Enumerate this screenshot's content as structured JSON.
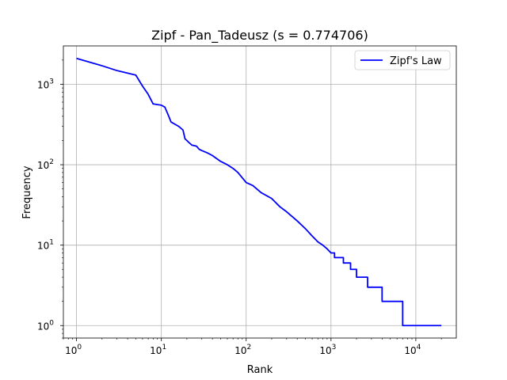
{
  "chart_data": {
    "type": "line",
    "title": "Zipf - Pan_Tadeusz (s = 0.774706)",
    "xlabel": "Rank",
    "ylabel": "Frequency",
    "xscale": "log",
    "yscale": "log",
    "xlim": [
      0.7,
      30000
    ],
    "ylim": [
      0.7,
      3000
    ],
    "grid": true,
    "legend_position": "upper right",
    "x_ticks": [
      {
        "value": 1,
        "base": "10",
        "exp": "0"
      },
      {
        "value": 10,
        "base": "10",
        "exp": "1"
      },
      {
        "value": 100,
        "base": "10",
        "exp": "2"
      },
      {
        "value": 1000,
        "base": "10",
        "exp": "3"
      },
      {
        "value": 10000,
        "base": "10",
        "exp": "4"
      }
    ],
    "y_ticks": [
      {
        "value": 1,
        "base": "10",
        "exp": "0"
      },
      {
        "value": 10,
        "base": "10",
        "exp": "1"
      },
      {
        "value": 100,
        "base": "10",
        "exp": "2"
      },
      {
        "value": 1000,
        "base": "10",
        "exp": "3"
      }
    ],
    "series": [
      {
        "name": "Zipf's Law",
        "color": "#0000ff",
        "points": [
          [
            1,
            2100
          ],
          [
            2,
            1700
          ],
          [
            3,
            1480
          ],
          [
            5,
            1300
          ],
          [
            6,
            950
          ],
          [
            7,
            750
          ],
          [
            8,
            570
          ],
          [
            10,
            550
          ],
          [
            11,
            520
          ],
          [
            12,
            420
          ],
          [
            13,
            340
          ],
          [
            16,
            300
          ],
          [
            18,
            270
          ],
          [
            19,
            210
          ],
          [
            20,
            200
          ],
          [
            21,
            190
          ],
          [
            23,
            175
          ],
          [
            26,
            170
          ],
          [
            28,
            155
          ],
          [
            30,
            150
          ],
          [
            35,
            140
          ],
          [
            40,
            130
          ],
          [
            50,
            110
          ],
          [
            60,
            100
          ],
          [
            70,
            90
          ],
          [
            80,
            80
          ],
          [
            100,
            60
          ],
          [
            120,
            55
          ],
          [
            150,
            45
          ],
          [
            200,
            38
          ],
          [
            250,
            30
          ],
          [
            300,
            26
          ],
          [
            400,
            20
          ],
          [
            500,
            16
          ],
          [
            600,
            13
          ],
          [
            700,
            11
          ],
          [
            800,
            10
          ],
          [
            900,
            9
          ],
          [
            1000,
            8
          ],
          [
            1100,
            8
          ],
          [
            1100,
            7
          ],
          [
            1400,
            7
          ],
          [
            1400,
            6
          ],
          [
            1700,
            6
          ],
          [
            1700,
            5
          ],
          [
            2000,
            5
          ],
          [
            2000,
            4
          ],
          [
            2700,
            4
          ],
          [
            2700,
            3
          ],
          [
            4000,
            3
          ],
          [
            4000,
            2
          ],
          [
            7000,
            2
          ],
          [
            7000,
            1
          ],
          [
            20000,
            1
          ]
        ]
      }
    ]
  }
}
